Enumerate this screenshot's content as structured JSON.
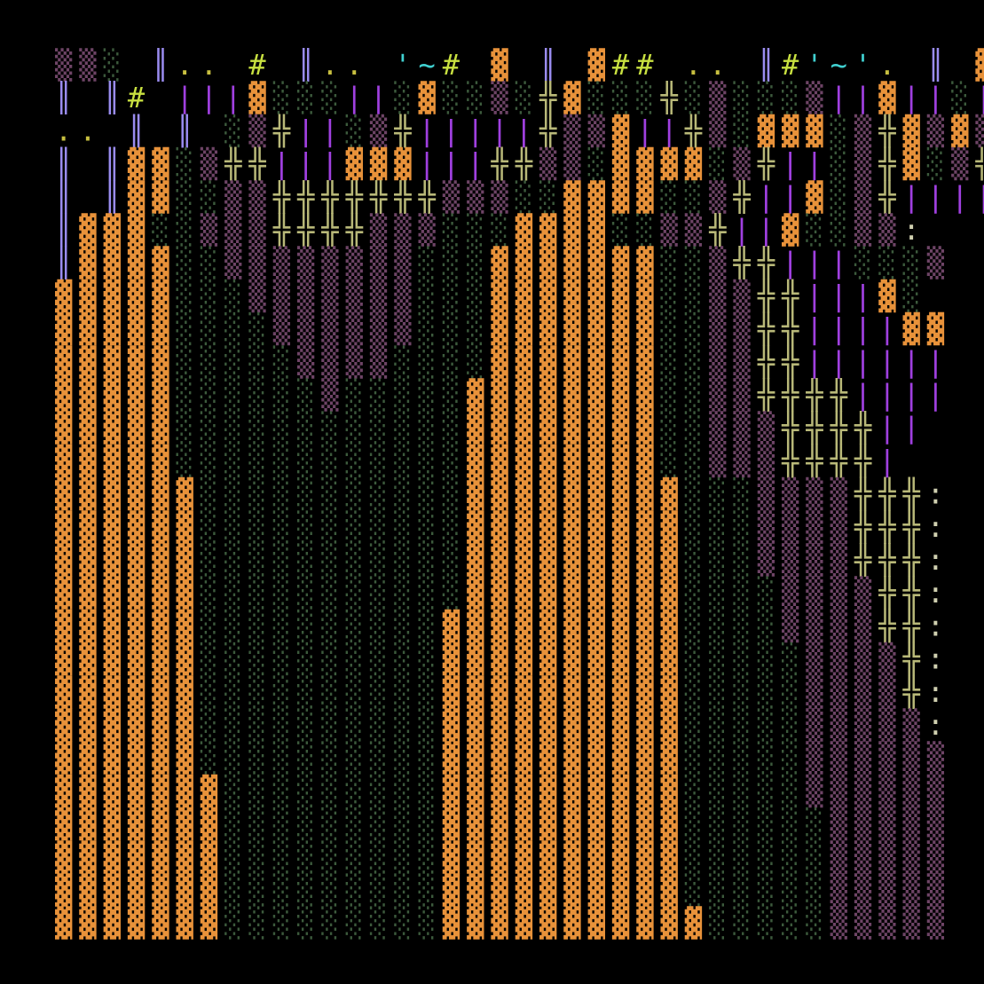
{
  "art": {
    "rows": [
      "▒▒░ ║.. # ║.. '~# ▓ ║ ▓## .. ║#'~'. ║ ▓▓▓ ║.. # ║'~'.. #'~'║'~'▓.. '",
      "║ ║# |||▓░░░||░▓░░▒░╬▓░░░╬░▒░░░▒||▓||░||╬▒▓▒░░",
      ".. ║ ║ ░▒╬||░▒╬|||||╬▒▒▓||╬▒░▓▓▓░▒╬▓▒▓▒▓╬▓▒╬|",
      "║ ║▓▓░▒╬╬|||▓▓▓|||╬╬▒▒░▓▓▓▓░▒╬||░▒╬▓░▒╬:",
      "║ ║▓▓░░▒▒╬╬╬╬╬╬╬▒▒▒░░▓▓▓▓░░▒╬||▓░▒╬||||",
      "║▓▓▓░░▒▒▒╬╬╬╬▒▒▒░░░▓▓▓▓░░▒▒╬||▓░░▒▒:",
      "║▓▓▓▓░░▒▒▒▒▒▒▒▒░░░▓▓▓▓▓▓▓░░▒╬╬|||░░░▒",
      "▓▓▓▓▓░░░▒▒▒▒▒▒▒░░░▓▓▓▓▓▓▓░░▒▒╬╬|||▓░",
      "▓▓▓▓▓░░░░▒▒▒▒▒▒░░░▓▓▓▓▓▓▓░░▒▒╬╬||||▓▓",
      "▓▓▓▓▓░░░░░▒▒▒▒░░░░▓▓▓▓▓▓▓░░▒▒╬╬||||||",
      "▓▓▓▓▓░░░░░░▒░░░░░▓▓▓▓▓▓▓▓░░▒▒╬╬╬╬||||",
      "▓▓▓▓▓░░░░░░░░░░░░▓▓▓▓▓▓▓▓░░▒▒▒╬╬╬╬||",
      "▓▓▓▓▓░░░░░░░░░░░░▓▓▓▓▓▓▓▓░░▒▒▒╬╬╬╬|",
      "▓▓▓▓▓▓░░░░░░░░░░░▓▓▓▓▓▓▓▓▓░░░▒▒▒▒╬╬╬:",
      "▓▓▓▓▓▓░░░░░░░░░░░▓▓▓▓▓▓▓▓▓░░░▒▒▒▒╬╬╬:",
      "▓▓▓▓▓▓░░░░░░░░░░░▓▓▓▓▓▓▓▓▓░░░▒▒▒▒╬╬╬:",
      "▓▓▓▓▓▓░░░░░░░░░░░▓▓▓▓▓▓▓▓▓░░░░▒▒▒▒╬╬:",
      "▓▓▓▓▓▓░░░░░░░░░░▓▓▓▓▓▓▓▓▓▓░░░░▒▒▒▒╬╬:",
      "▓▓▓▓▓▓░░░░░░░░░░▓▓▓▓▓▓▓▓▓▓░░░░░▒▒▒▒╬:",
      "▓▓▓▓▓▓░░░░░░░░░░▓▓▓▓▓▓▓▓▓▓░░░░░▒▒▒▒╬:",
      "▓▓▓▓▓▓░░░░░░░░░░▓▓▓▓▓▓▓▓▓▓░░░░░▒▒▒▒▒:",
      "▓▓▓▓▓▓░░░░░░░░░░▓▓▓▓▓▓▓▓▓▓░░░░░▒▒▒▒▒▒",
      "▓▓▓▓▓▓▓░░░░░░░░░▓▓▓▓▓▓▓▓▓▓░░░░░▒▒▒▒▒▒",
      "▓▓▓▓▓▓▓░░░░░░░░░▓▓▓▓▓▓▓▓▓▓░░░░░░▒▒▒▒▒",
      "▓▓▓▓▓▓▓░░░░░░░░░▓▓▓▓▓▓▓▓▓▓░░░░░░▒▒▒▒▒",
      "▓▓▓▓▓▓▓░░░░░░░░░▓▓▓▓▓▓▓▓▓▓░░░░░░▒▒▒▒▒",
      "▓▓▓▓▓▓▓░░░░░░░░░▓▓▓▓▓▓▓▓▓▓▓░░░░░▒▒▒▒▒"
    ],
    "palette": {
      "▓": "#e8923a",
      "░": "#3c5a3c",
      "▒": "#6e4466",
      "║": "#9a8cf0",
      "╬": "#b8b878",
      "|": "#a040e0",
      "#": "#c8e040",
      "'": "#40d0d0",
      "~": "#40d0d0",
      ".": "#c8c040",
      ":": "#d0d0b0"
    }
  }
}
